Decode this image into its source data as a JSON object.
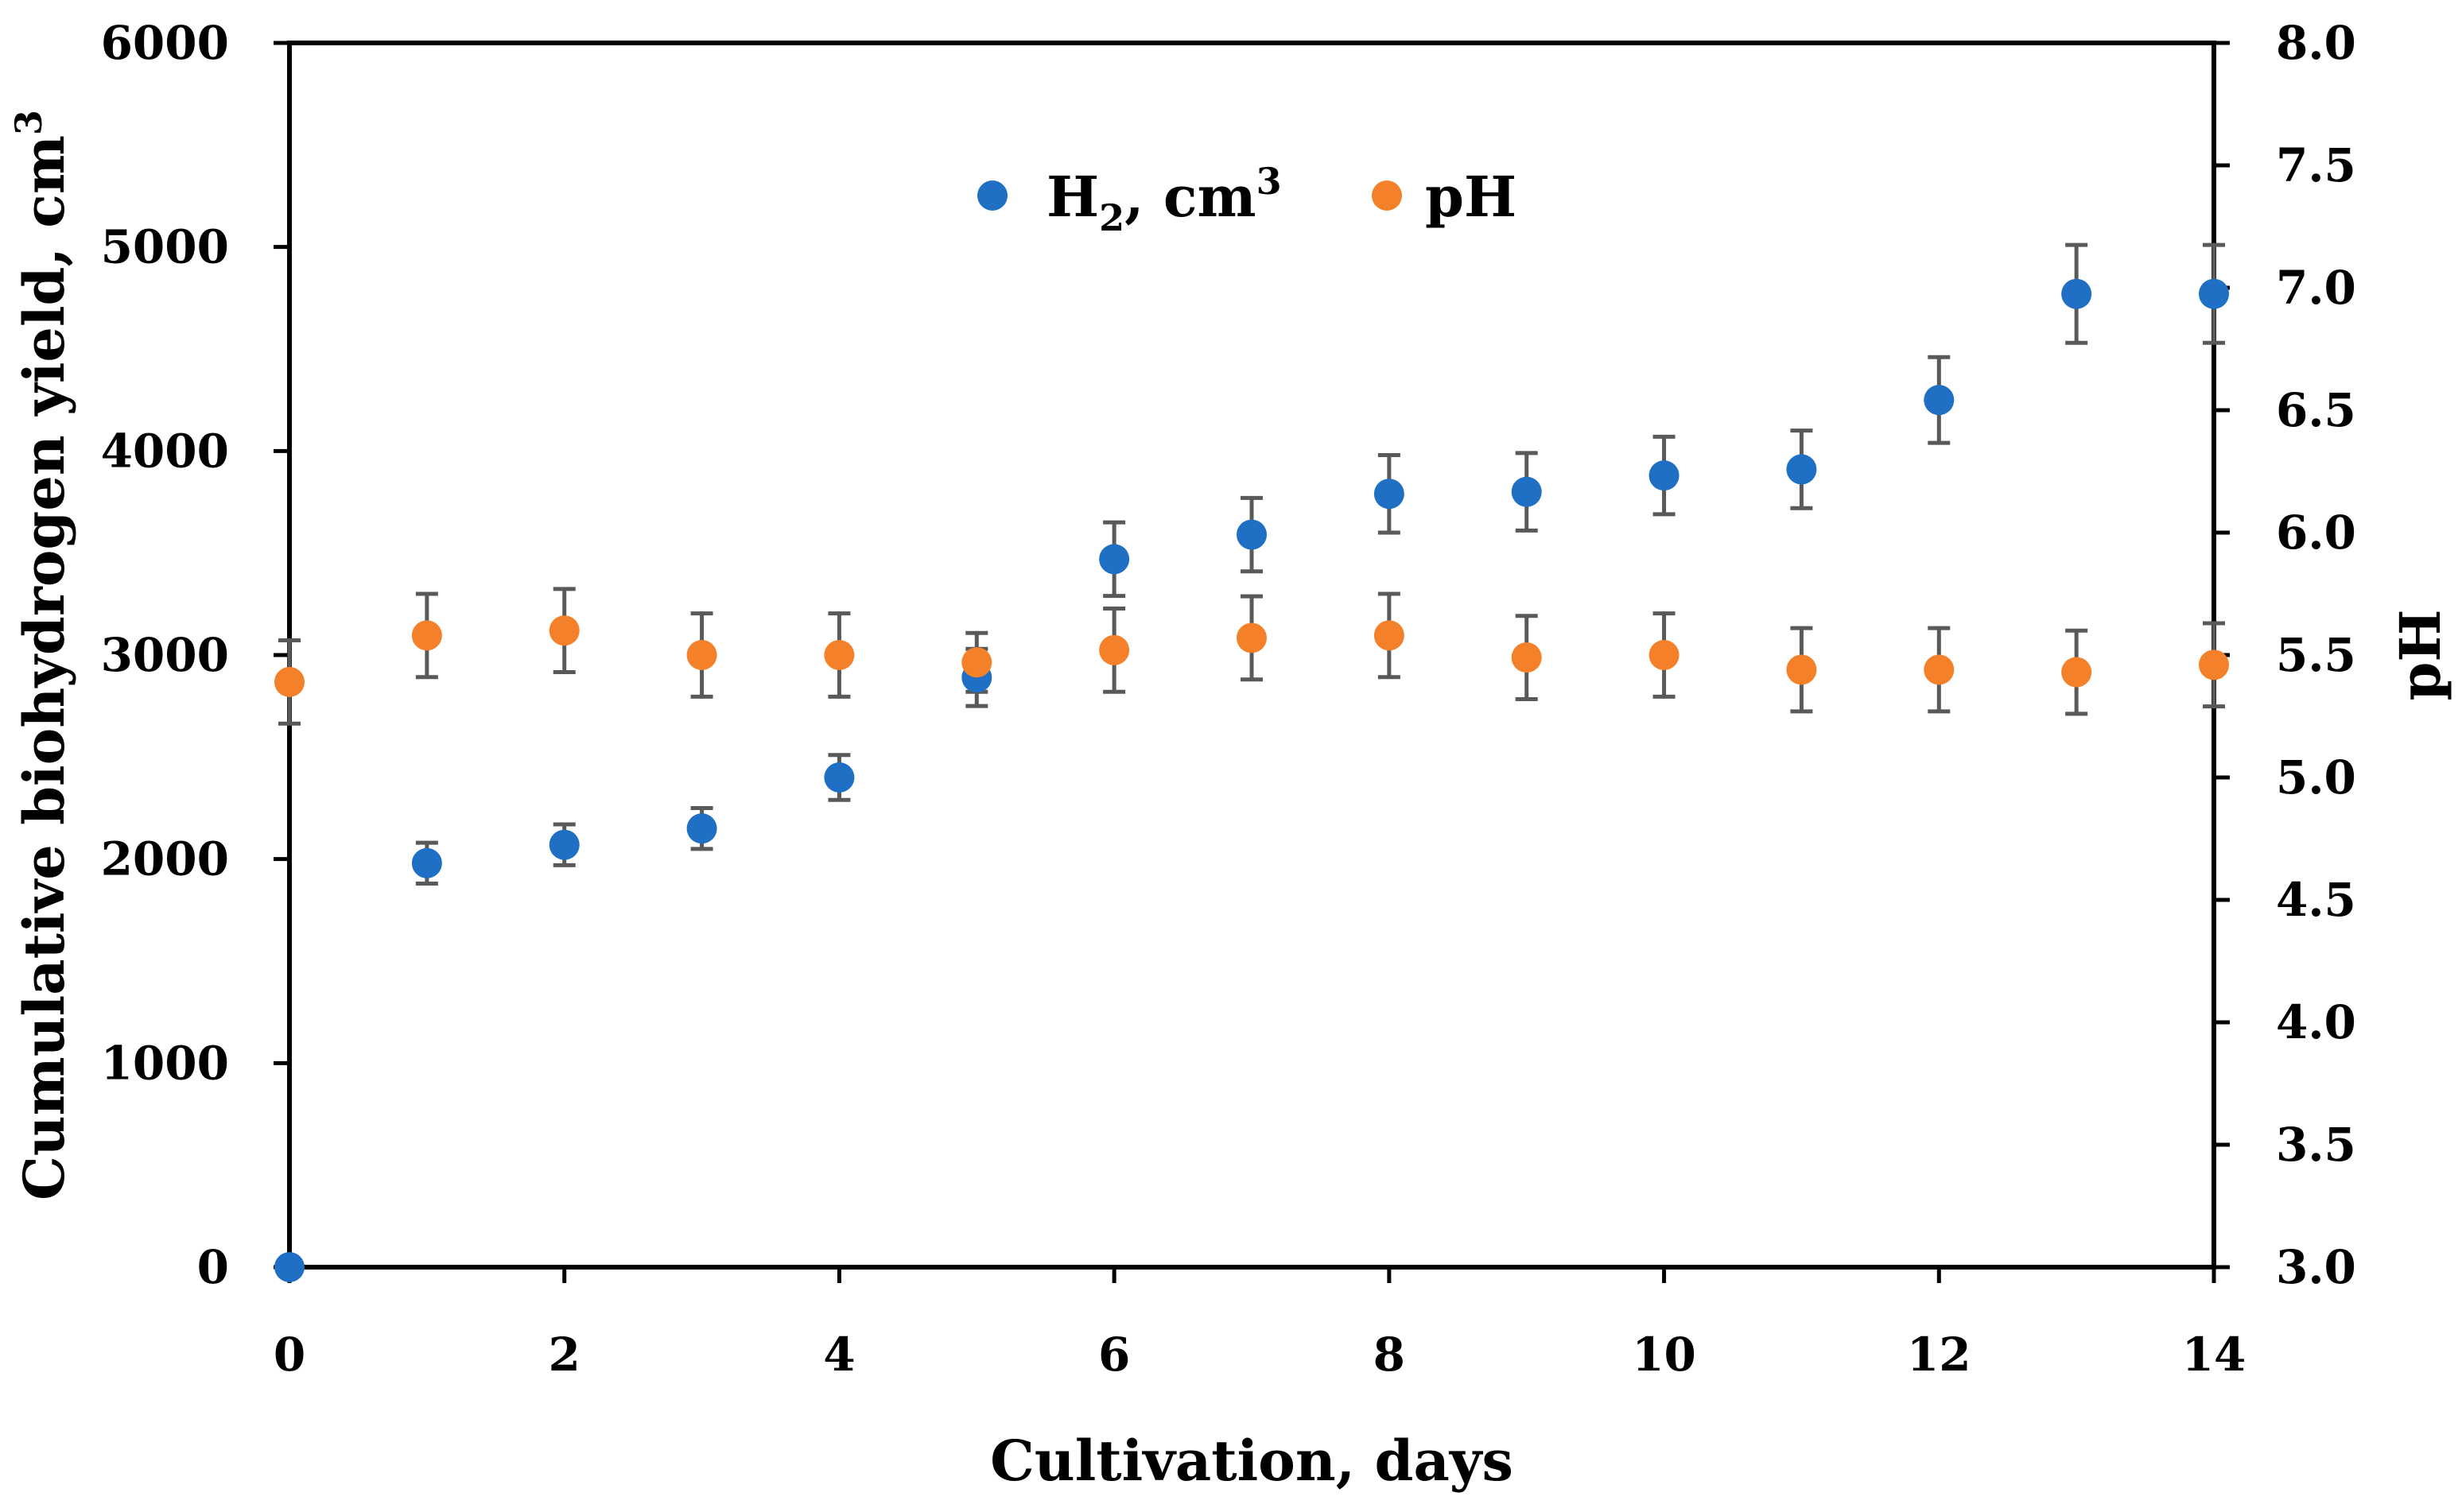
{
  "chart_data": {
    "type": "scatter",
    "title": "",
    "xlabel": "Cultivation, days",
    "ylabel": "Cumulative biohydrogen yield, cm",
    "ylabel_superscript": "3",
    "y2label": "pH",
    "xlim": [
      0,
      14
    ],
    "ylim": [
      0,
      6000
    ],
    "y2lim": [
      3.0,
      8.0
    ],
    "grid": false,
    "legend_position": "top-center",
    "x_ticks": [
      "0",
      "2",
      "4",
      "6",
      "8",
      "10",
      "12",
      "14"
    ],
    "y_ticks": [
      "0",
      "1000",
      "2000",
      "3000",
      "4000",
      "5000",
      "6000"
    ],
    "y2_ticks": [
      "3.0",
      "3.5",
      "4.0",
      "4.5",
      "5.0",
      "5.5",
      "6.0",
      "6.5",
      "7.0",
      "7.5",
      "8.0"
    ],
    "series": [
      {
        "name": "H2, cm3",
        "legend_main": "H",
        "legend_sub": "2",
        "legend_rest": ", cm",
        "legend_sup": "3",
        "axis": "left",
        "color": "#1F6FC5",
        "x": [
          0,
          1,
          2,
          3,
          4,
          5,
          6,
          7,
          8,
          9,
          10,
          11,
          12,
          13,
          14
        ],
        "y": [
          0,
          1980,
          2070,
          2150,
          2400,
          2890,
          3470,
          3590,
          3790,
          3800,
          3880,
          3910,
          4250,
          4770,
          4770
        ],
        "error": [
          0,
          100,
          100,
          100,
          110,
          140,
          180,
          180,
          190,
          190,
          190,
          190,
          210,
          240,
          240
        ]
      },
      {
        "name": "pH",
        "legend_main": "pH",
        "axis": "right",
        "color": "#F4812A",
        "x": [
          0,
          1,
          2,
          3,
          4,
          5,
          6,
          7,
          8,
          9,
          10,
          11,
          12,
          13,
          14
        ],
        "y": [
          5.39,
          5.58,
          5.6,
          5.5,
          5.5,
          5.47,
          5.52,
          5.57,
          5.58,
          5.49,
          5.5,
          5.44,
          5.44,
          5.43,
          5.46
        ],
        "error": [
          0.17,
          0.17,
          0.17,
          0.17,
          0.17,
          0.12,
          0.17,
          0.17,
          0.17,
          0.17,
          0.17,
          0.17,
          0.17,
          0.17,
          0.17
        ]
      }
    ],
    "error_bar_color": "#595959"
  }
}
